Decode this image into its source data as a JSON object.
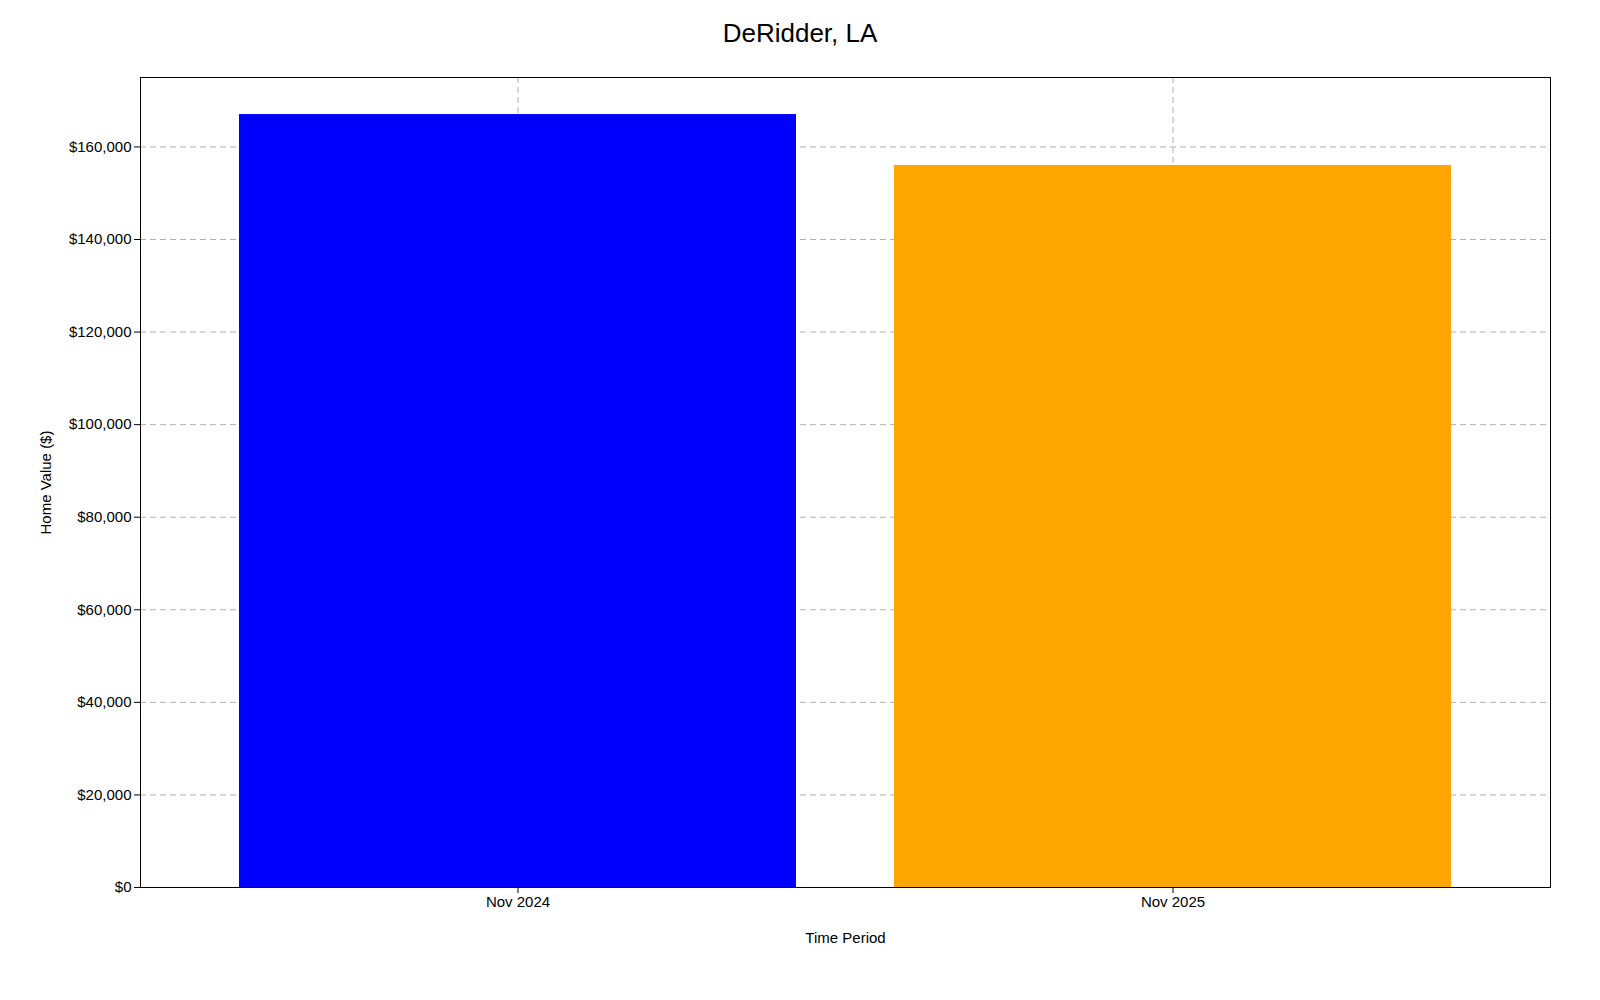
{
  "chart_data": {
    "type": "bar",
    "title": "DeRidder, LA",
    "categories": [
      "Nov 2024",
      "Nov 2025"
    ],
    "values": [
      167000,
      156000
    ],
    "colors": [
      "#0000ff",
      "#ffa500"
    ],
    "xlabel": "Time Period",
    "ylabel": "Home Value ($)",
    "ylim": [
      0,
      175000
    ],
    "yticks": [
      {
        "value": 0,
        "label": "$0"
      },
      {
        "value": 20000,
        "label": "$20,000"
      },
      {
        "value": 40000,
        "label": "$40,000"
      },
      {
        "value": 60000,
        "label": "$60,000"
      },
      {
        "value": 80000,
        "label": "$80,000"
      },
      {
        "value": 100000,
        "label": "$100,000"
      },
      {
        "value": 120000,
        "label": "$120,000"
      },
      {
        "value": 140000,
        "label": "$140,000"
      },
      {
        "value": 160000,
        "label": "$160,000"
      }
    ],
    "grid": true
  }
}
